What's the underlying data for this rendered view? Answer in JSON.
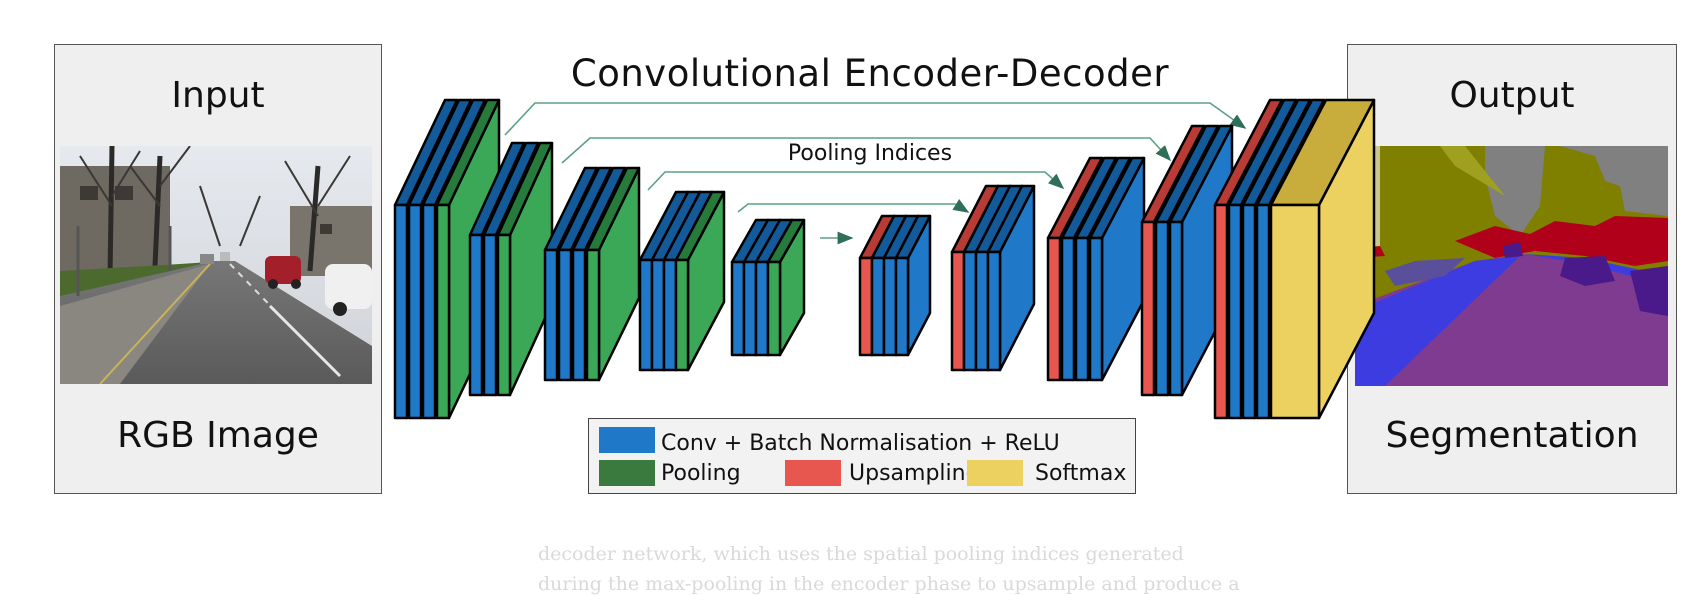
{
  "input_panel": {
    "title": "Input",
    "subtitle": "RGB Image"
  },
  "output_panel": {
    "title": "Output",
    "subtitle": "Segmentation"
  },
  "network": {
    "title": "Convolutional Encoder-Decoder",
    "skip_label": "Pooling Indices"
  },
  "legend": {
    "conv": "Conv + Batch Normalisation + ReLU",
    "pooling": "Pooling",
    "upsampling": "Upsampling",
    "softmax": "Softmax"
  },
  "colors": {
    "conv": "#1f78c8",
    "pooling": "#3aa857",
    "pooling_legend": "#3a7a3f",
    "upsampling": "#e8574f",
    "softmax": "#ecd060",
    "arrow": "#4a9a7a"
  },
  "caption": {
    "line1": "decoder network, which uses the spatial pooling indices generated",
    "line2": "during the max-pooling in the encoder phase to upsample and produce a"
  }
}
